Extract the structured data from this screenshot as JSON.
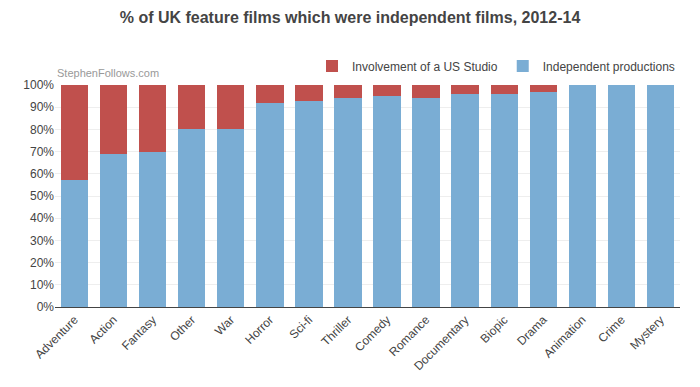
{
  "chart_data": {
    "type": "bar",
    "stacked": true,
    "title": "% of UK feature films which were independent films, 2012-14",
    "subtitle": "StephenFollows.com",
    "categories": [
      "Adventure",
      "Action",
      "Fantasy",
      "Other",
      "War",
      "Horror",
      "Sci-fi",
      "Thriller",
      "Comedy",
      "Romance",
      "Documentary",
      "Biopic",
      "Drama",
      "Animation",
      "Crime",
      "Mystery"
    ],
    "series": [
      {
        "name": "Independent productions",
        "color": "#7aadd4",
        "values": [
          57,
          69,
          70,
          80,
          80,
          92,
          93,
          94,
          95,
          94,
          96,
          96,
          97,
          100,
          100,
          100
        ]
      },
      {
        "name": "Involvement of a US Studio",
        "color": "#c0504d",
        "values": [
          43,
          31,
          30,
          20,
          20,
          8,
          7,
          6,
          5,
          6,
          4,
          4,
          3,
          0,
          0,
          0
        ]
      }
    ],
    "ylim": [
      0,
      100
    ],
    "yticks": [
      {
        "value": 0,
        "label": "0%"
      },
      {
        "value": 10,
        "label": "10%"
      },
      {
        "value": 20,
        "label": "20%"
      },
      {
        "value": 30,
        "label": "30%"
      },
      {
        "value": 40,
        "label": "40%"
      },
      {
        "value": 50,
        "label": "50%"
      },
      {
        "value": 60,
        "label": "60%"
      },
      {
        "value": 70,
        "label": "70%"
      },
      {
        "value": 80,
        "label": "80%"
      },
      {
        "value": 90,
        "label": "90%"
      },
      {
        "value": 100,
        "label": "100%"
      }
    ],
    "grid": true,
    "legend": "top"
  }
}
